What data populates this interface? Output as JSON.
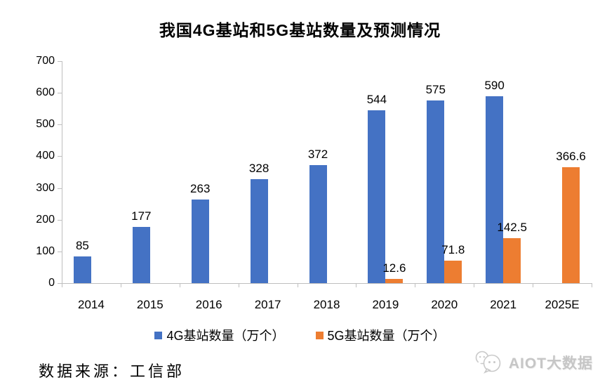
{
  "title": "我国4G基站和5G基站数量及预测情况",
  "chart_data": {
    "type": "bar",
    "categories": [
      "2014",
      "2015",
      "2016",
      "2017",
      "2018",
      "2019",
      "2020",
      "2021",
      "2025E"
    ],
    "series": [
      {
        "key": "4g",
        "name": "4G基站数量（万个）",
        "color": "#4472C4",
        "values": [
          85,
          177,
          263,
          328,
          372,
          544,
          575,
          590,
          null
        ]
      },
      {
        "key": "5g",
        "name": "5G基站数量（万个）",
        "color": "#ED7D31",
        "values": [
          null,
          null,
          null,
          null,
          null,
          12.6,
          71.8,
          142.5,
          366.6
        ]
      }
    ],
    "ylim": [
      0,
      700
    ],
    "yticks": [
      0,
      100,
      200,
      300,
      400,
      500,
      600,
      700
    ],
    "grid": false,
    "data_labels": true,
    "legend_position": "bottom"
  },
  "footer": {
    "source": "数据来源：工信部",
    "logo_icon": "wechat-chat-bubbles-icon",
    "logo_text": "AIOT大数据"
  },
  "colors": {
    "series_4g": "#4472C4",
    "series_5g": "#ED7D31",
    "axis": "#BFBFBF",
    "label": "#000000",
    "logo_gray": "#C6C6C6"
  }
}
